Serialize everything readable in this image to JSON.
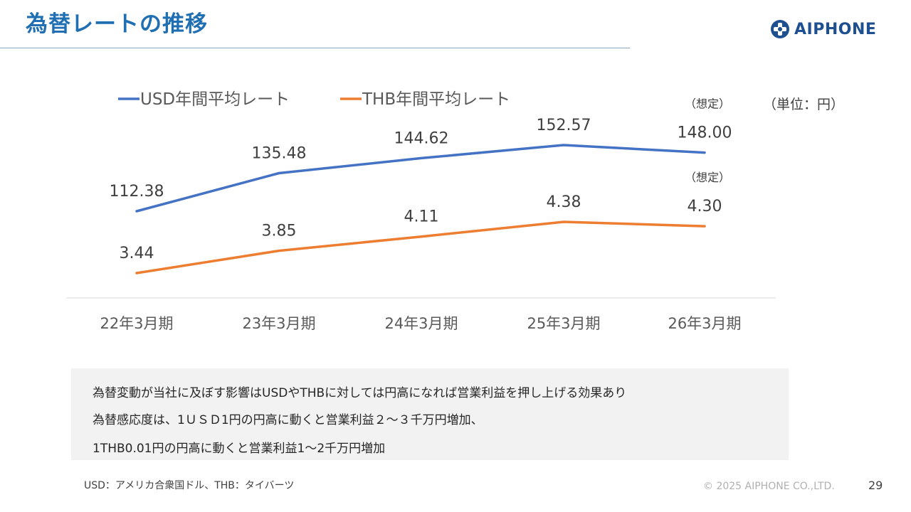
{
  "header": {
    "title": "為替レートの推移",
    "logo_text": "AIPHONE"
  },
  "unit_label": "（単位：円）",
  "chart_data": {
    "type": "line",
    "categories": [
      "22年3月期",
      "23年3月期",
      "24年3月期",
      "25年3月期",
      "26年3月期"
    ],
    "series": [
      {
        "name": "USD年間平均レート",
        "color": "#4472c4",
        "values": [
          112.38,
          135.48,
          144.62,
          152.57,
          148.0
        ],
        "labels": [
          "112.38",
          "135.48",
          "144.62",
          "152.57",
          "148.00"
        ],
        "last_point_note": "（想定）"
      },
      {
        "name": "THB年間平均レート",
        "color": "#ed7d31",
        "values": [
          3.44,
          3.85,
          4.11,
          4.38,
          4.3
        ],
        "labels": [
          "3.44",
          "3.85",
          "4.11",
          "4.38",
          "4.30"
        ],
        "last_point_note": "（想定）"
      }
    ],
    "legend_position": "top-left",
    "grid": false
  },
  "notes": {
    "line1": "為替変動が当社に及ぼす影響はUSDやTHBに対しては円高になれば営業利益を押し上げる効果あり",
    "line2": "為替感応度は、1ＵＳＤ1円の円高に動くと営業利益２〜３千万円増加、",
    "line3": "1THB0.01円の円高に動くと営業利益1〜2千万円増加"
  },
  "footer": {
    "footnote": "USD：アメリカ合衆国ドル、THB：タイバーツ",
    "copyright": "© 2025 AIPHONE CO.,LTD.",
    "page_number": "29"
  }
}
